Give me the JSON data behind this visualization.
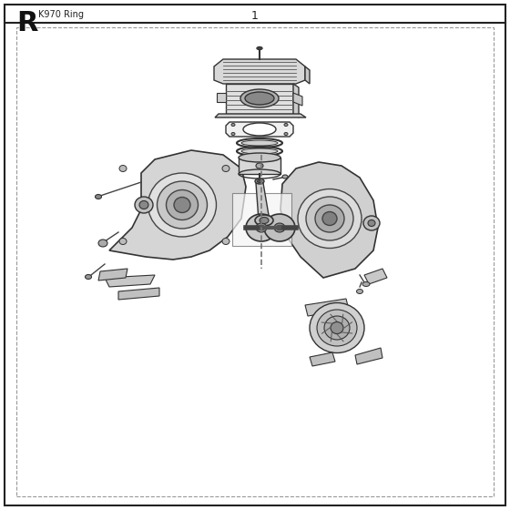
{
  "title": "R",
  "subtitle": "K970 Ring",
  "part_number": "1",
  "bg_color": "#ffffff",
  "border_color": "#333333",
  "dashed_border_color": "#aaaaaa",
  "line_color": "#444444",
  "fill_color": "#e8e8e8",
  "dark_fill": "#555555",
  "figsize": [
    5.6,
    5.6
  ],
  "dpi": 100
}
